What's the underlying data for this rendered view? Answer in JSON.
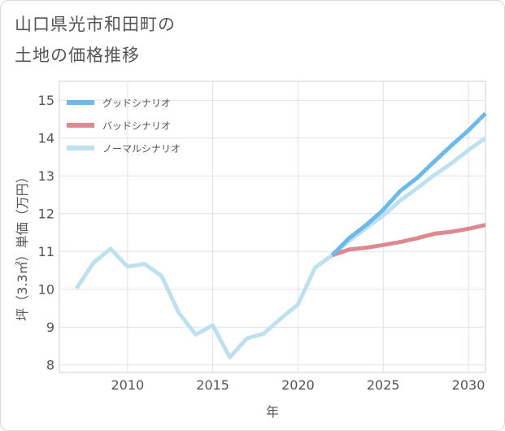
{
  "title_line1": "山口県光市和田町の",
  "title_line2": "土地の価格推移",
  "chart_data": {
    "type": "line",
    "xlabel": "年",
    "ylabel": "坪（3.3㎡）単価（万円）",
    "xlim": [
      2006.0,
      2031.0
    ],
    "ylim": [
      7.8,
      15.5
    ],
    "xticks": [
      2010,
      2015,
      2020,
      2025,
      2030
    ],
    "yticks": [
      8,
      9,
      10,
      11,
      12,
      13,
      14,
      15
    ],
    "grid": true,
    "legend_position": "top-left",
    "series": [
      {
        "name": "グッドシナリオ",
        "color": "#6cb9ec",
        "x": [
          2022,
          2023,
          2024,
          2025,
          2026,
          2027,
          2028,
          2029,
          2030,
          2031
        ],
        "y": [
          10.9,
          11.35,
          11.7,
          12.1,
          12.6,
          12.95,
          13.38,
          13.8,
          14.2,
          14.65
        ]
      },
      {
        "name": "バッドシナリオ",
        "color": "#dc8a90",
        "x": [
          2022,
          2023,
          2024,
          2025,
          2026,
          2027,
          2028,
          2029,
          2030,
          2031
        ],
        "y": [
          10.9,
          11.05,
          11.1,
          11.17,
          11.25,
          11.35,
          11.47,
          11.52,
          11.6,
          11.7
        ]
      },
      {
        "name": "ノーマルシナリオ",
        "color": "#bfe0ef",
        "x": [
          2007,
          2008,
          2009,
          2010,
          2011,
          2012,
          2013,
          2014,
          2015,
          2016,
          2017,
          2018,
          2019,
          2020,
          2021,
          2022,
          2023,
          2024,
          2025,
          2026,
          2027,
          2028,
          2029,
          2030,
          2031
        ],
        "y": [
          10.02,
          10.7,
          11.07,
          10.6,
          10.67,
          10.35,
          9.38,
          8.8,
          9.05,
          8.2,
          8.7,
          8.83,
          9.23,
          9.6,
          10.57,
          10.9,
          11.28,
          11.62,
          11.95,
          12.35,
          12.68,
          13.02,
          13.33,
          13.68,
          14.0
        ]
      }
    ]
  }
}
